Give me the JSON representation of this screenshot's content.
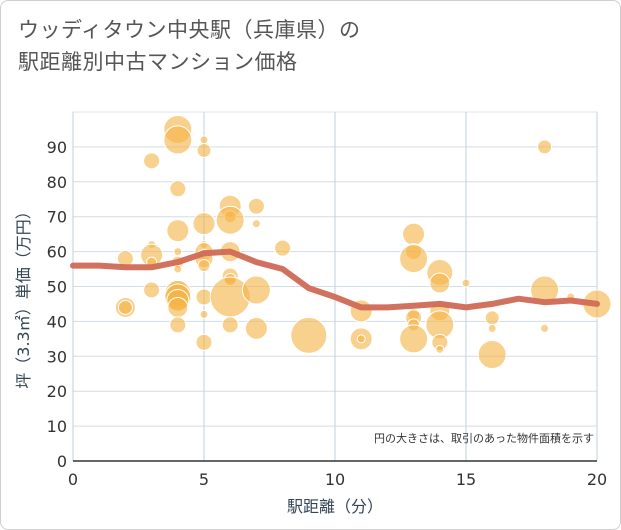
{
  "chart_data": {
    "type": "scatter",
    "title_lines": [
      "ウッディタウン中央駅（兵庫県）の",
      "駅距離別中古マンション価格"
    ],
    "xlabel": "駅距離（分）",
    "ylabel": "坪（3.3㎡）単価（万円）",
    "xlim": [
      0,
      20
    ],
    "ylim": [
      0,
      100
    ],
    "x_ticks": [
      0,
      5,
      10,
      15,
      20
    ],
    "y_ticks": [
      0,
      10,
      20,
      30,
      40,
      50,
      60,
      70,
      80,
      90
    ],
    "grid": true,
    "annotation": "円の大きさは、取引のあった物件面積を示す",
    "bubble_color": "#f5b342",
    "line_color": "#d06a55",
    "points": [
      {
        "x": 2,
        "y": 58,
        "s": 8
      },
      {
        "x": 2,
        "y": 44,
        "s": 10
      },
      {
        "x": 2,
        "y": 44,
        "s": 7
      },
      {
        "x": 3,
        "y": 86,
        "s": 8
      },
      {
        "x": 3,
        "y": 62,
        "s": 4
      },
      {
        "x": 3,
        "y": 59,
        "s": 11
      },
      {
        "x": 3,
        "y": 57,
        "s": 5
      },
      {
        "x": 3,
        "y": 49,
        "s": 8
      },
      {
        "x": 4,
        "y": 95,
        "s": 14
      },
      {
        "x": 4,
        "y": 92,
        "s": 14
      },
      {
        "x": 4,
        "y": 78,
        "s": 8
      },
      {
        "x": 4,
        "y": 66,
        "s": 11
      },
      {
        "x": 4,
        "y": 60,
        "s": 4
      },
      {
        "x": 4,
        "y": 57,
        "s": 6
      },
      {
        "x": 4,
        "y": 55,
        "s": 4
      },
      {
        "x": 4,
        "y": 49,
        "s": 10
      },
      {
        "x": 4,
        "y": 48,
        "s": 13
      },
      {
        "x": 4,
        "y": 47,
        "s": 13
      },
      {
        "x": 4,
        "y": 46,
        "s": 11
      },
      {
        "x": 4,
        "y": 44,
        "s": 10
      },
      {
        "x": 4,
        "y": 39,
        "s": 8
      },
      {
        "x": 5,
        "y": 92,
        "s": 4
      },
      {
        "x": 5,
        "y": 89,
        "s": 7
      },
      {
        "x": 5,
        "y": 68,
        "s": 11
      },
      {
        "x": 5,
        "y": 62,
        "s": 4
      },
      {
        "x": 5,
        "y": 60,
        "s": 9
      },
      {
        "x": 5,
        "y": 58,
        "s": 9
      },
      {
        "x": 5,
        "y": 56,
        "s": 6
      },
      {
        "x": 5,
        "y": 47,
        "s": 8
      },
      {
        "x": 5,
        "y": 42,
        "s": 4
      },
      {
        "x": 5,
        "y": 34,
        "s": 8
      },
      {
        "x": 6,
        "y": 73,
        "s": 11
      },
      {
        "x": 6,
        "y": 70,
        "s": 6
      },
      {
        "x": 6,
        "y": 69,
        "s": 14
      },
      {
        "x": 6,
        "y": 60,
        "s": 10
      },
      {
        "x": 6,
        "y": 53,
        "s": 8
      },
      {
        "x": 6,
        "y": 52,
        "s": 6
      },
      {
        "x": 6,
        "y": 47,
        "s": 20
      },
      {
        "x": 6,
        "y": 39,
        "s": 8
      },
      {
        "x": 7,
        "y": 73,
        "s": 8
      },
      {
        "x": 7,
        "y": 68,
        "s": 4
      },
      {
        "x": 7,
        "y": 49,
        "s": 14
      },
      {
        "x": 7,
        "y": 38,
        "s": 11
      },
      {
        "x": 8,
        "y": 61,
        "s": 8
      },
      {
        "x": 9,
        "y": 36,
        "s": 18
      },
      {
        "x": 11,
        "y": 43,
        "s": 11
      },
      {
        "x": 11,
        "y": 35,
        "s": 11
      },
      {
        "x": 11,
        "y": 35,
        "s": 4
      },
      {
        "x": 13,
        "y": 65,
        "s": 11
      },
      {
        "x": 13,
        "y": 60,
        "s": 8
      },
      {
        "x": 13,
        "y": 58,
        "s": 14
      },
      {
        "x": 13,
        "y": 42,
        "s": 6
      },
      {
        "x": 13,
        "y": 41,
        "s": 8
      },
      {
        "x": 13,
        "y": 39,
        "s": 6
      },
      {
        "x": 13,
        "y": 35,
        "s": 14
      },
      {
        "x": 14,
        "y": 54,
        "s": 13
      },
      {
        "x": 14,
        "y": 51,
        "s": 10
      },
      {
        "x": 14,
        "y": 43,
        "s": 10
      },
      {
        "x": 14,
        "y": 39,
        "s": 14
      },
      {
        "x": 14,
        "y": 34,
        "s": 8
      },
      {
        "x": 14,
        "y": 32,
        "s": 4
      },
      {
        "x": 15,
        "y": 51,
        "s": 4
      },
      {
        "x": 16,
        "y": 41,
        "s": 7
      },
      {
        "x": 16,
        "y": 38,
        "s": 4
      },
      {
        "x": 16,
        "y": 30.5,
        "s": 14
      },
      {
        "x": 18,
        "y": 90,
        "s": 7
      },
      {
        "x": 18,
        "y": 49,
        "s": 14
      },
      {
        "x": 18,
        "y": 38,
        "s": 4
      },
      {
        "x": 19,
        "y": 47,
        "s": 4
      },
      {
        "x": 20,
        "y": 45,
        "s": 14
      }
    ],
    "trend": {
      "x": [
        0,
        1,
        2,
        3,
        4,
        5,
        6,
        7,
        8,
        9,
        10,
        11,
        12,
        13,
        14,
        15,
        16,
        17,
        18,
        19,
        20
      ],
      "y": [
        56,
        56,
        55.5,
        55.5,
        57,
        59.5,
        60,
        57,
        55,
        49.5,
        47,
        44,
        44,
        44.5,
        45,
        44,
        45,
        46.5,
        45.5,
        46,
        45
      ]
    }
  }
}
